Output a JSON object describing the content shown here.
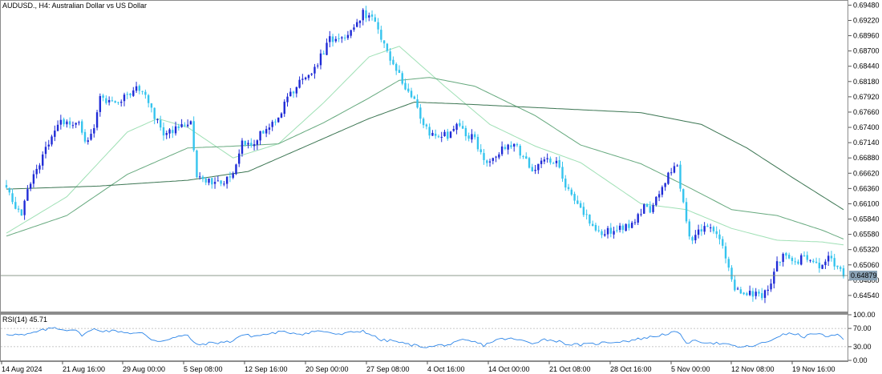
{
  "chart_title": "AUDUSD., H4:  Australian Dollar vs US Dollar",
  "current_price_label": "0.64879",
  "rsi_label": "RSI(14) 45.71",
  "colors": {
    "bull": "#1f2bd6",
    "bear": "#35c4ee",
    "ma_fast": "#9fe0b5",
    "ma_mid": "#66a97e",
    "ma_slow": "#3b7552",
    "rsi": "#2e86e8",
    "price_line": "#7b8e7b",
    "price_tag_bg": "#8aa2b5"
  },
  "chart_data": [
    {
      "type": "candlestick",
      "title": "AUDUSD., H4:  Australian Dollar vs US Dollar",
      "ylim": [
        0.6428,
        0.6954
      ],
      "y_ticks": [
        "0.69480",
        "0.69220",
        "0.68960",
        "0.68700",
        "0.68440",
        "0.68180",
        "0.67920",
        "0.67660",
        "0.67400",
        "0.67140",
        "0.66880",
        "0.66620",
        "0.66360",
        "0.66100",
        "0.65840",
        "0.65580",
        "0.65320",
        "0.65060",
        "0.64800",
        "0.64540"
      ],
      "x_ticks": [
        "14 Aug 2024",
        "21 Aug 16:00",
        "29 Aug 00:00",
        "5 Sep 08:00",
        "12 Sep 16:00",
        "20 Sep 00:00",
        "27 Sep 08:00",
        "4 Oct 16:00",
        "14 Oct 00:00",
        "21 Oct 08:00",
        "28 Oct 16:00",
        "5 Nov 00:00",
        "12 Nov 08:00",
        "19 Nov 16:00"
      ],
      "current_price": 0.64879,
      "close_path": [
        [
          0,
          0.664
        ],
        [
          3,
          0.66
        ],
        [
          5,
          0.6592
        ],
        [
          7,
          0.6635
        ],
        [
          10,
          0.6665
        ],
        [
          13,
          0.6702
        ],
        [
          16,
          0.673
        ],
        [
          18,
          0.6748
        ],
        [
          21,
          0.6745
        ],
        [
          24,
          0.6745
        ],
        [
          26,
          0.6715
        ],
        [
          29,
          0.674
        ],
        [
          31,
          0.679
        ],
        [
          34,
          0.6785
        ],
        [
          37,
          0.6783
        ],
        [
          40,
          0.6795
        ],
        [
          43,
          0.6805
        ],
        [
          46,
          0.6793
        ],
        [
          48,
          0.677
        ],
        [
          50,
          0.6748
        ],
        [
          52,
          0.6728
        ],
        [
          55,
          0.6735
        ],
        [
          58,
          0.674
        ],
        [
          61,
          0.6748
        ],
        [
          63,
          0.6655
        ],
        [
          66,
          0.665
        ],
        [
          69,
          0.6645
        ],
        [
          72,
          0.665
        ],
        [
          75,
          0.6665
        ],
        [
          78,
          0.6715
        ],
        [
          81,
          0.671
        ],
        [
          84,
          0.673
        ],
        [
          87,
          0.6745
        ],
        [
          90,
          0.6755
        ],
        [
          93,
          0.679
        ],
        [
          96,
          0.681
        ],
        [
          99,
          0.6825
        ],
        [
          102,
          0.684
        ],
        [
          105,
          0.687
        ],
        [
          107,
          0.689
        ],
        [
          110,
          0.689
        ],
        [
          113,
          0.6895
        ],
        [
          116,
          0.692
        ],
        [
          118,
          0.6935
        ],
        [
          121,
          0.6925
        ],
        [
          124,
          0.6895
        ],
        [
          127,
          0.6855
        ],
        [
          129,
          0.684
        ],
        [
          132,
          0.6805
        ],
        [
          135,
          0.679
        ],
        [
          138,
          0.674
        ],
        [
          141,
          0.6728
        ],
        [
          143,
          0.673
        ],
        [
          146,
          0.6725
        ],
        [
          149,
          0.6742
        ],
        [
          152,
          0.673
        ],
        [
          155,
          0.672
        ],
        [
          157,
          0.6695
        ],
        [
          160,
          0.668
        ],
        [
          163,
          0.67
        ],
        [
          166,
          0.671
        ],
        [
          169,
          0.6705
        ],
        [
          171,
          0.669
        ],
        [
          174,
          0.667
        ],
        [
          177,
          0.668
        ],
        [
          180,
          0.6685
        ],
        [
          183,
          0.6675
        ],
        [
          185,
          0.6638
        ],
        [
          188,
          0.662
        ],
        [
          191,
          0.6595
        ],
        [
          194,
          0.657
        ],
        [
          197,
          0.6555
        ],
        [
          199,
          0.6565
        ],
        [
          202,
          0.6565
        ],
        [
          205,
          0.657
        ],
        [
          208,
          0.658
        ],
        [
          211,
          0.6605
        ],
        [
          213,
          0.66
        ],
        [
          216,
          0.6625
        ],
        [
          219,
          0.666
        ],
        [
          222,
          0.6675
        ],
        [
          225,
          0.6575
        ],
        [
          227,
          0.6545
        ],
        [
          230,
          0.6568
        ],
        [
          233,
          0.657
        ],
        [
          236,
          0.6555
        ],
        [
          239,
          0.65
        ],
        [
          241,
          0.646
        ],
        [
          244,
          0.646
        ],
        [
          247,
          0.6455
        ],
        [
          250,
          0.6455
        ],
        [
          253,
          0.6475
        ],
        [
          255,
          0.651
        ],
        [
          258,
          0.6525
        ],
        [
          261,
          0.651
        ],
        [
          264,
          0.652
        ],
        [
          267,
          0.6515
        ],
        [
          269,
          0.65
        ],
        [
          272,
          0.6525
        ],
        [
          275,
          0.65
        ],
        [
          277,
          0.6488
        ]
      ],
      "moving_averages": [
        {
          "period": 21,
          "shape": [
            [
              0,
              0.656
            ],
            [
              20,
              0.6622
            ],
            [
              40,
              0.6732
            ],
            [
              50,
              0.6755
            ],
            [
              60,
              0.674
            ],
            [
              75,
              0.6688
            ],
            [
              90,
              0.6712
            ],
            [
              105,
              0.6782
            ],
            [
              120,
              0.686
            ],
            [
              130,
              0.6878
            ],
            [
              145,
              0.681
            ],
            [
              160,
              0.6745
            ],
            [
              175,
              0.6708
            ],
            [
              190,
              0.668
            ],
            [
              210,
              0.661
            ],
            [
              225,
              0.66
            ],
            [
              240,
              0.6568
            ],
            [
              255,
              0.6548
            ],
            [
              270,
              0.6545
            ],
            [
              277,
              0.654
            ]
          ]
        },
        {
          "period": 50,
          "shape": [
            [
              0,
              0.6555
            ],
            [
              20,
              0.659
            ],
            [
              40,
              0.666
            ],
            [
              60,
              0.6705
            ],
            [
              75,
              0.6708
            ],
            [
              90,
              0.6712
            ],
            [
              105,
              0.6748
            ],
            [
              120,
              0.679
            ],
            [
              130,
              0.682
            ],
            [
              140,
              0.6825
            ],
            [
              155,
              0.681
            ],
            [
              175,
              0.676
            ],
            [
              190,
              0.671
            ],
            [
              210,
              0.6678
            ],
            [
              225,
              0.664
            ],
            [
              240,
              0.66
            ],
            [
              255,
              0.659
            ],
            [
              270,
              0.6565
            ],
            [
              277,
              0.655
            ]
          ]
        },
        {
          "period": 200,
          "shape": [
            [
              0,
              0.6635
            ],
            [
              30,
              0.664
            ],
            [
              60,
              0.665
            ],
            [
              80,
              0.6665
            ],
            [
              100,
              0.671
            ],
            [
              120,
              0.6755
            ],
            [
              135,
              0.6783
            ],
            [
              150,
              0.678
            ],
            [
              170,
              0.6775
            ],
            [
              190,
              0.677
            ],
            [
              210,
              0.6765
            ],
            [
              230,
              0.6745
            ],
            [
              245,
              0.6705
            ],
            [
              260,
              0.6655
            ],
            [
              277,
              0.66
            ]
          ]
        }
      ]
    },
    {
      "type": "line",
      "title": "RSI(14) 45.71",
      "ylim": [
        0,
        100
      ],
      "y_ticks": [
        "100.00",
        "70.00",
        "30.00",
        "0.00"
      ],
      "levels": [
        70,
        30
      ],
      "value_path": [
        [
          0,
          58
        ],
        [
          6,
          55
        ],
        [
          12,
          66
        ],
        [
          16,
          72
        ],
        [
          19,
          67
        ],
        [
          22,
          68
        ],
        [
          25,
          56
        ],
        [
          29,
          68
        ],
        [
          32,
          65
        ],
        [
          37,
          64
        ],
        [
          41,
          60
        ],
        [
          45,
          59
        ],
        [
          48,
          46
        ],
        [
          51,
          42
        ],
        [
          54,
          48
        ],
        [
          57,
          52
        ],
        [
          60,
          55
        ],
        [
          63,
          33
        ],
        [
          66,
          37
        ],
        [
          70,
          39
        ],
        [
          74,
          41
        ],
        [
          78,
          56
        ],
        [
          82,
          53
        ],
        [
          86,
          57
        ],
        [
          90,
          62
        ],
        [
          94,
          61
        ],
        [
          98,
          58
        ],
        [
          102,
          64
        ],
        [
          106,
          63
        ],
        [
          110,
          56
        ],
        [
          114,
          61
        ],
        [
          118,
          65
        ],
        [
          121,
          55
        ],
        [
          124,
          44
        ],
        [
          128,
          43
        ],
        [
          132,
          36
        ],
        [
          136,
          32
        ],
        [
          140,
          29
        ],
        [
          143,
          33
        ],
        [
          147,
          35
        ],
        [
          151,
          44
        ],
        [
          155,
          40
        ],
        [
          158,
          33
        ],
        [
          162,
          45
        ],
        [
          166,
          48
        ],
        [
          170,
          44
        ],
        [
          174,
          38
        ],
        [
          178,
          46
        ],
        [
          182,
          43
        ],
        [
          186,
          35
        ],
        [
          190,
          34
        ],
        [
          194,
          36
        ],
        [
          198,
          39
        ],
        [
          202,
          41
        ],
        [
          206,
          43
        ],
        [
          210,
          48
        ],
        [
          214,
          52
        ],
        [
          218,
          58
        ],
        [
          222,
          62
        ],
        [
          225,
          40
        ],
        [
          229,
          42
        ],
        [
          233,
          39
        ],
        [
          237,
          36
        ],
        [
          241,
          31
        ],
        [
          244,
          29
        ],
        [
          248,
          33
        ],
        [
          252,
          41
        ],
        [
          256,
          55
        ],
        [
          260,
          59
        ],
        [
          264,
          52
        ],
        [
          268,
          60
        ],
        [
          272,
          50
        ],
        [
          275,
          57
        ],
        [
          277,
          45.7
        ]
      ]
    }
  ]
}
